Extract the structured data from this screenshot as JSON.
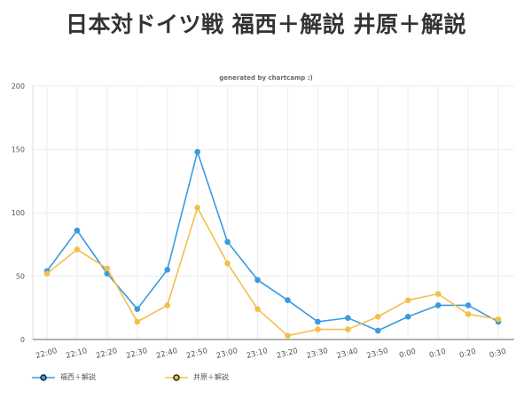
{
  "title": "日本対ドイツ戦 福西＋解説 井原＋解説",
  "subtitle": "generated by chartcamp :)",
  "chart_data": {
    "type": "line",
    "title": "日本対ドイツ戦 福西＋解説 井原＋解説",
    "subtitle": "generated by chartcamp :)",
    "xlabel": "",
    "ylabel": "",
    "ylim": [
      0,
      200
    ],
    "yticks": [
      0,
      50,
      100,
      150,
      200
    ],
    "grid": true,
    "legend_position": "bottom-left",
    "categories": [
      "22:00",
      "22:10",
      "22:20",
      "22:30",
      "22:40",
      "22:50",
      "23:00",
      "23:10",
      "23:20",
      "23:30",
      "23:40",
      "23:50",
      "0:00",
      "0:10",
      "0:20",
      "0:30"
    ],
    "series": [
      {
        "name": "福西＋解説",
        "color": "#3a9ae0",
        "values": [
          54,
          86,
          52,
          24,
          55,
          148,
          77,
          47,
          31,
          14,
          17,
          7,
          18,
          27,
          27,
          14
        ]
      },
      {
        "name": "井原＋解説",
        "color": "#f2c04a",
        "values": [
          52,
          71,
          56,
          14,
          27,
          104,
          60,
          24,
          3,
          8,
          8,
          18,
          31,
          36,
          20,
          16
        ]
      }
    ]
  }
}
